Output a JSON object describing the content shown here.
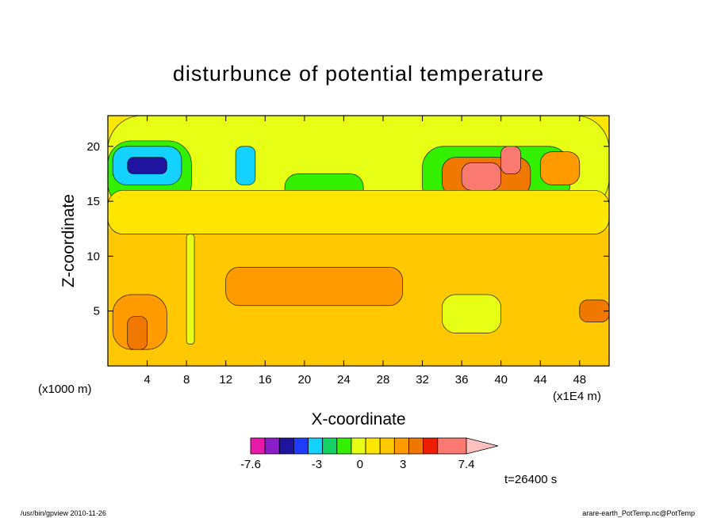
{
  "chart_data": {
    "type": "heatmap",
    "title": "disturbunce of potential temperature",
    "xlabel": "X-coordinate",
    "ylabel": "Z-coordinate",
    "x_scale_note": "(x1E4 m)",
    "y_scale_note": "(x1000 m)",
    "xlim": [
      0,
      51
    ],
    "ylim": [
      0,
      22.8
    ],
    "x_ticks": [
      4,
      8,
      12,
      16,
      20,
      24,
      28,
      32,
      36,
      40,
      44,
      48
    ],
    "y_ticks": [
      5,
      10,
      15,
      20
    ],
    "colorbar": {
      "levels": [
        -7.6,
        -6.6,
        -5.6,
        -4.6,
        -3.6,
        -2.6,
        -1.6,
        -0.6,
        0.4,
        1.4,
        2.4,
        3.4,
        4.4,
        5.4,
        7.4
      ],
      "labels": [
        "-7.6",
        "-3",
        "0",
        "3",
        "7.4"
      ],
      "label_values": [
        -7.6,
        -3,
        0,
        3,
        7.4
      ],
      "colors": [
        "#e619a8",
        "#8c1ec8",
        "#1e14a0",
        "#1e3cff",
        "#14d2ff",
        "#14d264",
        "#32f000",
        "#e6ff14",
        "#ffe600",
        "#ffc800",
        "#ff9b00",
        "#f07800",
        "#f01e00",
        "#fa7a72",
        "#ffc0c0"
      ]
    },
    "regions": [
      {
        "x": 0,
        "z": 22.8,
        "x2": 51,
        "z2": 0,
        "value": 0.9
      },
      {
        "x": 0,
        "z": 12.5,
        "x2": 51,
        "z2": 0,
        "value": 1.5
      },
      {
        "x": 0,
        "z": 9.2,
        "x2": 51,
        "z2": 0,
        "value": 2.2
      },
      {
        "x": 12,
        "z": 9.0,
        "x2": 30,
        "z2": 5.5,
        "value": 2.9
      },
      {
        "x": 0.5,
        "z": 6.5,
        "x2": 6,
        "z2": 1.5,
        "value": 2.9
      },
      {
        "x": 2,
        "z": 4.5,
        "x2": 4,
        "z2": 1.5,
        "value": 4.0
      },
      {
        "x": 0,
        "z": 22.8,
        "x2": 51,
        "z2": 14.0,
        "value": -0.2
      },
      {
        "x": 0,
        "z": 20.5,
        "x2": 8.5,
        "z2": 14.5,
        "value": -1.6
      },
      {
        "x": 0.5,
        "z": 20.0,
        "x2": 7.5,
        "z2": 16.5,
        "value": -3.0
      },
      {
        "x": 2,
        "z": 19.0,
        "x2": 6,
        "z2": 17.5,
        "value": -5.5
      },
      {
        "x": 13,
        "z": 20.0,
        "x2": 15,
        "z2": 16.5,
        "value": -3.5
      },
      {
        "x": 18,
        "z": 17.5,
        "x2": 26,
        "z2": 14.0,
        "value": -1.2
      },
      {
        "x": 32,
        "z": 20.0,
        "x2": 47,
        "z2": 14.5,
        "value": -1.5
      },
      {
        "x": 34,
        "z": 19.0,
        "x2": 43,
        "z2": 15.5,
        "value": 3.5
      },
      {
        "x": 36,
        "z": 18.5,
        "x2": 40,
        "z2": 16.0,
        "value": 5.5
      },
      {
        "x": 40,
        "z": 20.0,
        "x2": 42,
        "z2": 17.5,
        "value": 6.8
      },
      {
        "x": 44,
        "z": 19.5,
        "x2": 48,
        "z2": 16.5,
        "value": 2.5
      },
      {
        "x": 0,
        "z": 16.0,
        "x2": 51,
        "z2": 12.0,
        "value": 0.4
      },
      {
        "x": 8,
        "z": 12.0,
        "x2": 8.8,
        "z2": 2.0,
        "value": -0.4
      },
      {
        "x": 48,
        "z": 6.0,
        "x2": 51,
        "z2": 4.0,
        "value": 4.0
      },
      {
        "x": 34,
        "z": 6.5,
        "x2": 40,
        "z2": 3.0,
        "value": 0.2
      }
    ]
  },
  "annotations": {
    "time": "t=26400 s",
    "footer_left": "/usr/bin/gpview 2010-11-26",
    "footer_right": "arare-earth_PotTemp.nc@PotTemp"
  },
  "colors": {
    "frame": "#000000",
    "background": "#ffffff"
  }
}
